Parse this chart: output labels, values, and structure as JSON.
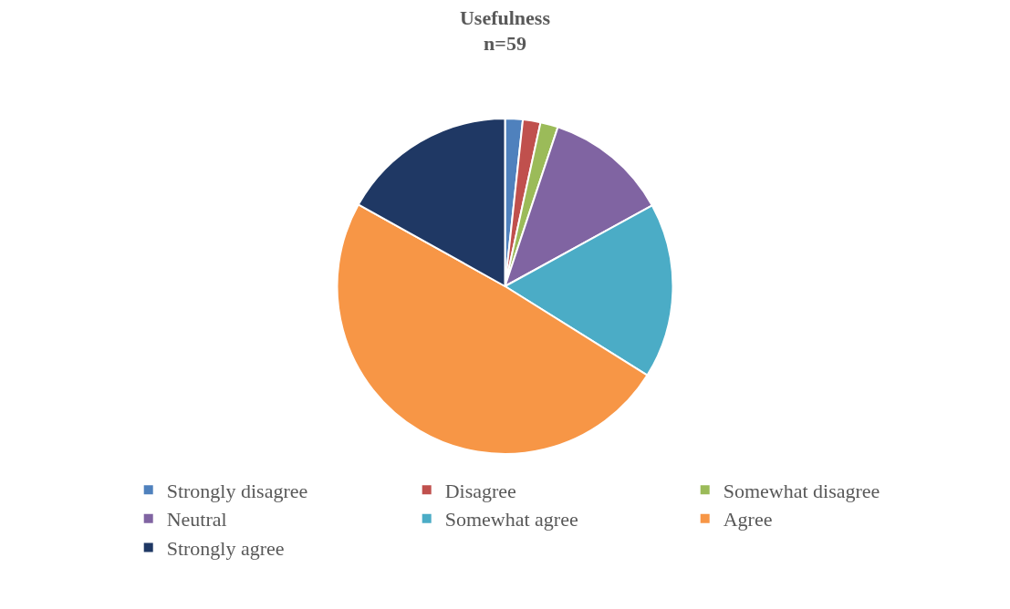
{
  "chart_data": {
    "type": "pie",
    "title": "Usefulness\nn=59",
    "categories": [
      "Strongly disagree",
      "Disagree",
      "Somewhat disagree",
      "Neutral",
      "Somewhat agree",
      "Agree",
      "Strongly agree"
    ],
    "values": [
      1.7,
      1.7,
      1.7,
      11.9,
      16.9,
      49.2,
      16.9
    ],
    "colors": [
      "#4f81bd",
      "#c0504d",
      "#9bbb59",
      "#8064a2",
      "#4bacc6",
      "#f79646",
      "#1f3864"
    ],
    "legend": "bottom"
  }
}
